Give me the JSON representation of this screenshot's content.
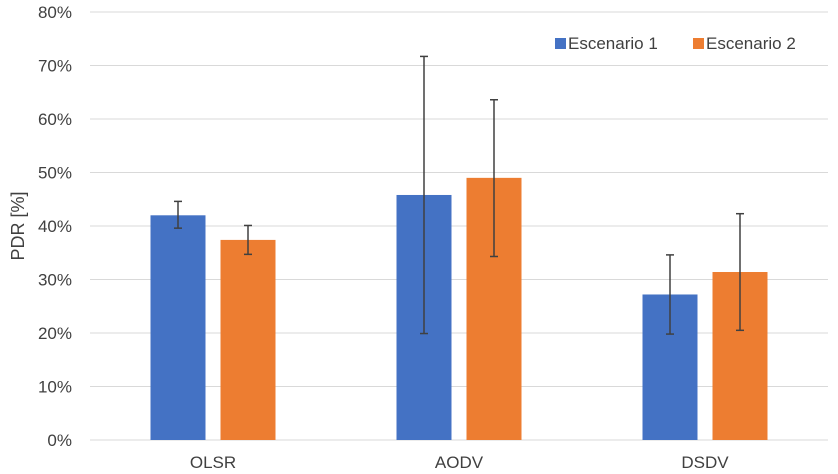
{
  "chart_data": {
    "type": "bar",
    "categories": [
      "OLSR",
      "AODV",
      "DSDV"
    ],
    "series": [
      {
        "name": "Escenario 1",
        "color": "#4472C4",
        "values": [
          42.0,
          45.8,
          27.2
        ],
        "error_low": [
          39.6,
          19.9,
          19.8
        ],
        "error_high": [
          44.6,
          71.7,
          34.6
        ]
      },
      {
        "name": "Escenario 2",
        "color": "#ED7D31",
        "values": [
          37.4,
          49.0,
          31.4
        ],
        "error_low": [
          34.7,
          34.3,
          20.5
        ],
        "error_high": [
          40.1,
          63.6,
          42.3
        ]
      }
    ],
    "ylabel": "PDR [%]",
    "xlabel": "",
    "ylim": [
      0,
      80
    ],
    "yticks": [
      "0%",
      "10%",
      "20%",
      "30%",
      "40%",
      "50%",
      "60%",
      "70%",
      "80%"
    ],
    "grid": true,
    "legend": "top-right",
    "gridline_color": "#d9d9d9",
    "errorbar_color": "#404040"
  }
}
